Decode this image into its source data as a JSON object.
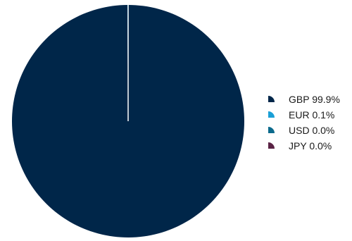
{
  "chart_data": {
    "type": "pie",
    "categories": [
      "GBP",
      "EUR",
      "USD",
      "JPY"
    ],
    "values": [
      99.9,
      0.1,
      0.0,
      0.0
    ],
    "colors": [
      "#002649",
      "#1a9fd6",
      "#0b6a8c",
      "#5a2345"
    ],
    "legend": {
      "position": "right",
      "entries": [
        "GBP 99.9%",
        "EUR 0.1%",
        "USD 0.0%",
        "JPY 0.0%"
      ]
    },
    "title": "",
    "start_angle": "top",
    "direction": "clockwise"
  }
}
